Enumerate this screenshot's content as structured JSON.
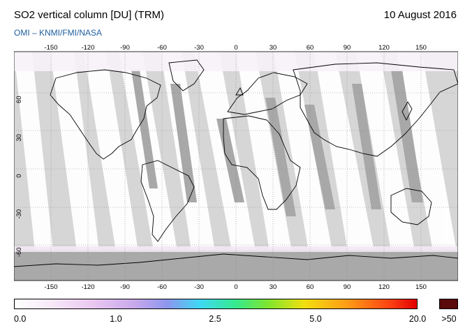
{
  "header": {
    "title": "SO2 vertical column [DU] (TRM)",
    "date": "10 August 2016",
    "credit": "OMI  –  KNMI/FMI/NASA"
  },
  "map": {
    "lon_ticks": [
      "-150",
      "-120",
      "-90",
      "-60",
      "-30",
      "0",
      "30",
      "60",
      "90",
      "120",
      "150"
    ],
    "lat_ticks": [
      "60",
      "30",
      "0",
      "-30",
      "-60"
    ],
    "colors": {
      "land_outline": "#000000",
      "swath": "#ffffff",
      "gap_light": "#d3d3d3",
      "gap_dark": "#a9a9a9",
      "gridline": "#888888"
    }
  },
  "colorbar": {
    "labels": [
      "0.0",
      "1.0",
      "2.5",
      "5.0",
      "20.0"
    ],
    "overflow_label": ">50",
    "overflow_color": "#5a0a0a"
  }
}
